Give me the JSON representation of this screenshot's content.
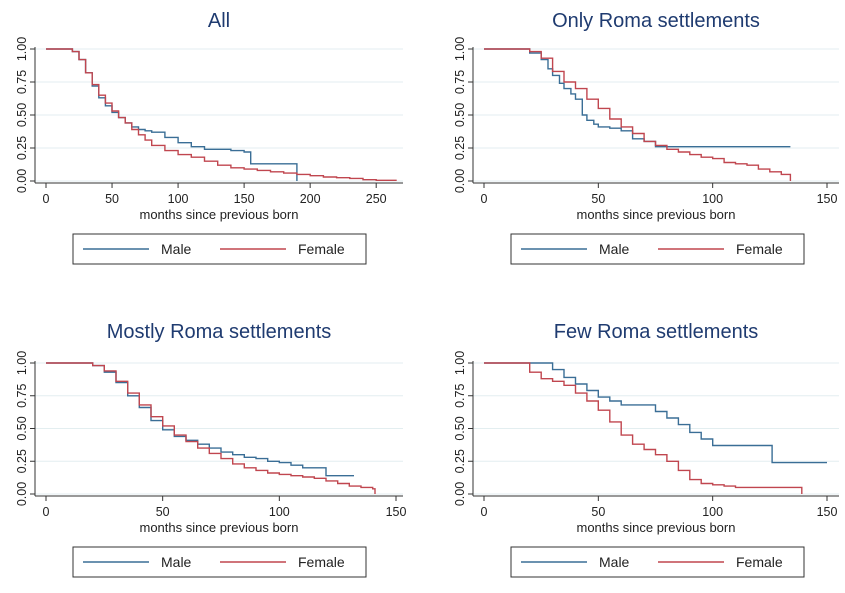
{
  "chart_data": [
    {
      "type": "line",
      "title": "All",
      "xlabel": "months since previous born",
      "ylabel": "",
      "xticks": [
        0,
        50,
        100,
        150,
        200,
        250
      ],
      "yticks": [
        "0.00",
        "0.25",
        "0.50",
        "0.75",
        "1.00"
      ],
      "xlim": [
        0,
        265
      ],
      "ylim": [
        0,
        1
      ],
      "grid": true,
      "legend": "bottom",
      "series": [
        {
          "name": "Male",
          "color": "#3a6e96",
          "x": [
            0,
            15,
            20,
            25,
            30,
            35,
            40,
            45,
            50,
            55,
            60,
            65,
            70,
            75,
            80,
            90,
            100,
            110,
            120,
            130,
            140,
            145,
            150,
            155,
            160,
            170,
            180,
            188,
            190
          ],
          "y": [
            1.0,
            1.0,
            0.98,
            0.92,
            0.82,
            0.72,
            0.63,
            0.57,
            0.52,
            0.48,
            0.44,
            0.41,
            0.39,
            0.38,
            0.37,
            0.33,
            0.29,
            0.26,
            0.24,
            0.24,
            0.23,
            0.23,
            0.22,
            0.13,
            0.13,
            0.13,
            0.13,
            0.13,
            0.0
          ]
        },
        {
          "name": "Female",
          "color": "#c0464f",
          "x": [
            0,
            15,
            20,
            25,
            30,
            35,
            40,
            45,
            50,
            55,
            60,
            65,
            70,
            75,
            80,
            90,
            100,
            110,
            120,
            130,
            140,
            150,
            160,
            170,
            180,
            190,
            200,
            210,
            220,
            230,
            240,
            250,
            265
          ],
          "y": [
            1.0,
            1.0,
            0.98,
            0.92,
            0.82,
            0.73,
            0.65,
            0.59,
            0.53,
            0.48,
            0.44,
            0.39,
            0.35,
            0.31,
            0.27,
            0.23,
            0.2,
            0.18,
            0.15,
            0.12,
            0.1,
            0.09,
            0.08,
            0.07,
            0.06,
            0.05,
            0.04,
            0.03,
            0.025,
            0.02,
            0.01,
            0.005,
            0.0
          ]
        }
      ]
    },
    {
      "type": "line",
      "title": "Only Roma settlements",
      "xlabel": "months since previous born",
      "ylabel": "",
      "xticks": [
        0,
        50,
        100,
        150
      ],
      "yticks": [
        "0.00",
        "0.25",
        "0.50",
        "0.75",
        "1.00"
      ],
      "xlim": [
        0,
        150
      ],
      "ylim": [
        0,
        1
      ],
      "grid": true,
      "legend": "bottom",
      "series": [
        {
          "name": "Male",
          "color": "#3a6e96",
          "x": [
            0,
            15,
            20,
            25,
            28,
            30,
            33,
            35,
            38,
            40,
            43,
            45,
            48,
            50,
            55,
            60,
            65,
            70,
            75,
            80,
            90,
            100,
            110,
            120,
            130,
            134
          ],
          "y": [
            1.0,
            1.0,
            0.97,
            0.92,
            0.85,
            0.8,
            0.74,
            0.7,
            0.66,
            0.62,
            0.5,
            0.46,
            0.43,
            0.41,
            0.4,
            0.38,
            0.32,
            0.3,
            0.26,
            0.26,
            0.26,
            0.26,
            0.26,
            0.26,
            0.26,
            0.26
          ]
        },
        {
          "name": "Female",
          "color": "#c0464f",
          "x": [
            0,
            15,
            20,
            25,
            30,
            35,
            40,
            45,
            50,
            55,
            60,
            65,
            70,
            75,
            80,
            85,
            90,
            95,
            100,
            105,
            110,
            115,
            120,
            125,
            130,
            134
          ],
          "y": [
            1.0,
            1.0,
            0.98,
            0.93,
            0.83,
            0.75,
            0.7,
            0.62,
            0.55,
            0.47,
            0.41,
            0.36,
            0.3,
            0.27,
            0.24,
            0.22,
            0.2,
            0.18,
            0.17,
            0.14,
            0.13,
            0.12,
            0.09,
            0.07,
            0.05,
            0.0
          ]
        }
      ]
    },
    {
      "type": "line",
      "title": "Mostly Roma settlements",
      "xlabel": "months since previous born",
      "ylabel": "",
      "xticks": [
        0,
        50,
        100,
        150
      ],
      "yticks": [
        "0.00",
        "0.25",
        "0.50",
        "0.75",
        "1.00"
      ],
      "xlim": [
        0,
        150
      ],
      "ylim": [
        0,
        1
      ],
      "grid": true,
      "legend": "bottom",
      "series": [
        {
          "name": "Male",
          "color": "#3a6e96",
          "x": [
            0,
            15,
            20,
            25,
            30,
            35,
            40,
            45,
            50,
            55,
            60,
            65,
            70,
            75,
            80,
            85,
            90,
            95,
            100,
            105,
            110,
            115,
            120,
            125,
            132
          ],
          "y": [
            1.0,
            1.0,
            0.98,
            0.93,
            0.85,
            0.75,
            0.66,
            0.56,
            0.49,
            0.44,
            0.41,
            0.38,
            0.35,
            0.32,
            0.3,
            0.28,
            0.27,
            0.25,
            0.24,
            0.22,
            0.2,
            0.2,
            0.14,
            0.14,
            0.14
          ]
        },
        {
          "name": "Female",
          "color": "#c0464f",
          "x": [
            0,
            15,
            20,
            25,
            30,
            35,
            40,
            45,
            50,
            55,
            60,
            65,
            70,
            75,
            80,
            85,
            90,
            95,
            100,
            105,
            110,
            115,
            120,
            125,
            130,
            135,
            140,
            141
          ],
          "y": [
            1.0,
            1.0,
            0.98,
            0.94,
            0.86,
            0.77,
            0.68,
            0.59,
            0.52,
            0.45,
            0.4,
            0.35,
            0.31,
            0.27,
            0.23,
            0.2,
            0.18,
            0.16,
            0.15,
            0.14,
            0.13,
            0.12,
            0.1,
            0.08,
            0.06,
            0.05,
            0.04,
            0.0
          ]
        }
      ]
    },
    {
      "type": "line",
      "title": "Few Roma settlements",
      "xlabel": "months since previous born",
      "ylabel": "",
      "xticks": [
        0,
        50,
        100,
        150
      ],
      "yticks": [
        "0.00",
        "0.25",
        "0.50",
        "0.75",
        "1.00"
      ],
      "xlim": [
        0,
        150
      ],
      "ylim": [
        0,
        1
      ],
      "grid": true,
      "legend": "bottom",
      "series": [
        {
          "name": "Male",
          "color": "#3a6e96",
          "x": [
            0,
            15,
            20,
            25,
            30,
            35,
            40,
            45,
            50,
            55,
            60,
            65,
            70,
            75,
            80,
            85,
            90,
            95,
            100,
            105,
            110,
            115,
            120,
            126,
            130,
            140,
            150
          ],
          "y": [
            1.0,
            1.0,
            1.0,
            1.0,
            0.95,
            0.89,
            0.84,
            0.79,
            0.74,
            0.71,
            0.68,
            0.68,
            0.68,
            0.63,
            0.58,
            0.53,
            0.47,
            0.42,
            0.37,
            0.37,
            0.37,
            0.37,
            0.37,
            0.24,
            0.24,
            0.24,
            0.24
          ]
        },
        {
          "name": "Female",
          "color": "#c0464f",
          "x": [
            0,
            15,
            20,
            25,
            30,
            35,
            40,
            45,
            50,
            55,
            60,
            65,
            70,
            75,
            80,
            85,
            90,
            95,
            100,
            105,
            110,
            115,
            120,
            125,
            130,
            138,
            139
          ],
          "y": [
            1.0,
            1.0,
            0.93,
            0.88,
            0.86,
            0.83,
            0.77,
            0.71,
            0.64,
            0.55,
            0.45,
            0.38,
            0.34,
            0.3,
            0.25,
            0.18,
            0.11,
            0.08,
            0.07,
            0.06,
            0.05,
            0.05,
            0.05,
            0.05,
            0.05,
            0.05,
            0.0
          ]
        }
      ]
    }
  ]
}
